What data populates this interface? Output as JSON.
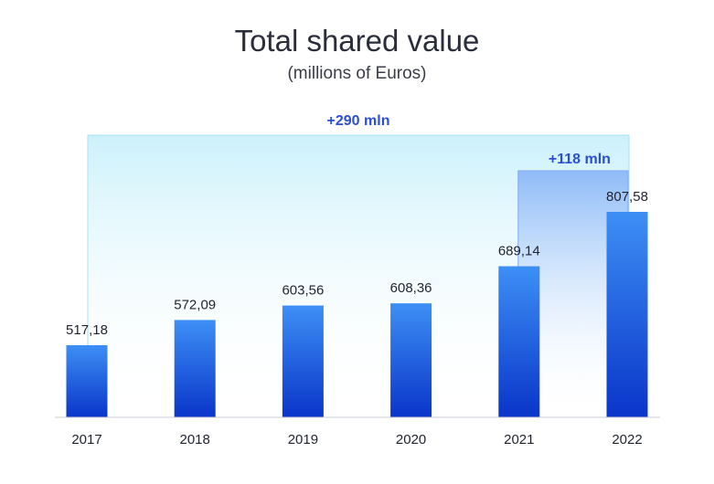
{
  "chart_data": {
    "type": "bar",
    "title": "Total shared value",
    "subtitle": "(millions of Euros)",
    "categories": [
      "2017",
      "2018",
      "2019",
      "2020",
      "2021",
      "2022"
    ],
    "values": [
      517.18,
      572.09,
      603.56,
      608.36,
      689.14,
      807.58
    ],
    "value_labels": [
      "517,18",
      "572,09",
      "603,56",
      "608,36",
      "689,14",
      "807,58"
    ],
    "annotations": [
      {
        "label": "+290 mln",
        "from": "2017",
        "to": "2022"
      },
      {
        "label": "+118 mln",
        "from": "2021",
        "to": "2022"
      }
    ],
    "ylim": [
      0,
      850
    ],
    "colors": {
      "bar_top": "#3d8ff5",
      "bar_bottom": "#0a35c9",
      "annotation": "#2a4fd6",
      "band_large": "#c9f0fb",
      "band_small": "#8cb8f7"
    },
    "grid": false,
    "legend": "none"
  }
}
